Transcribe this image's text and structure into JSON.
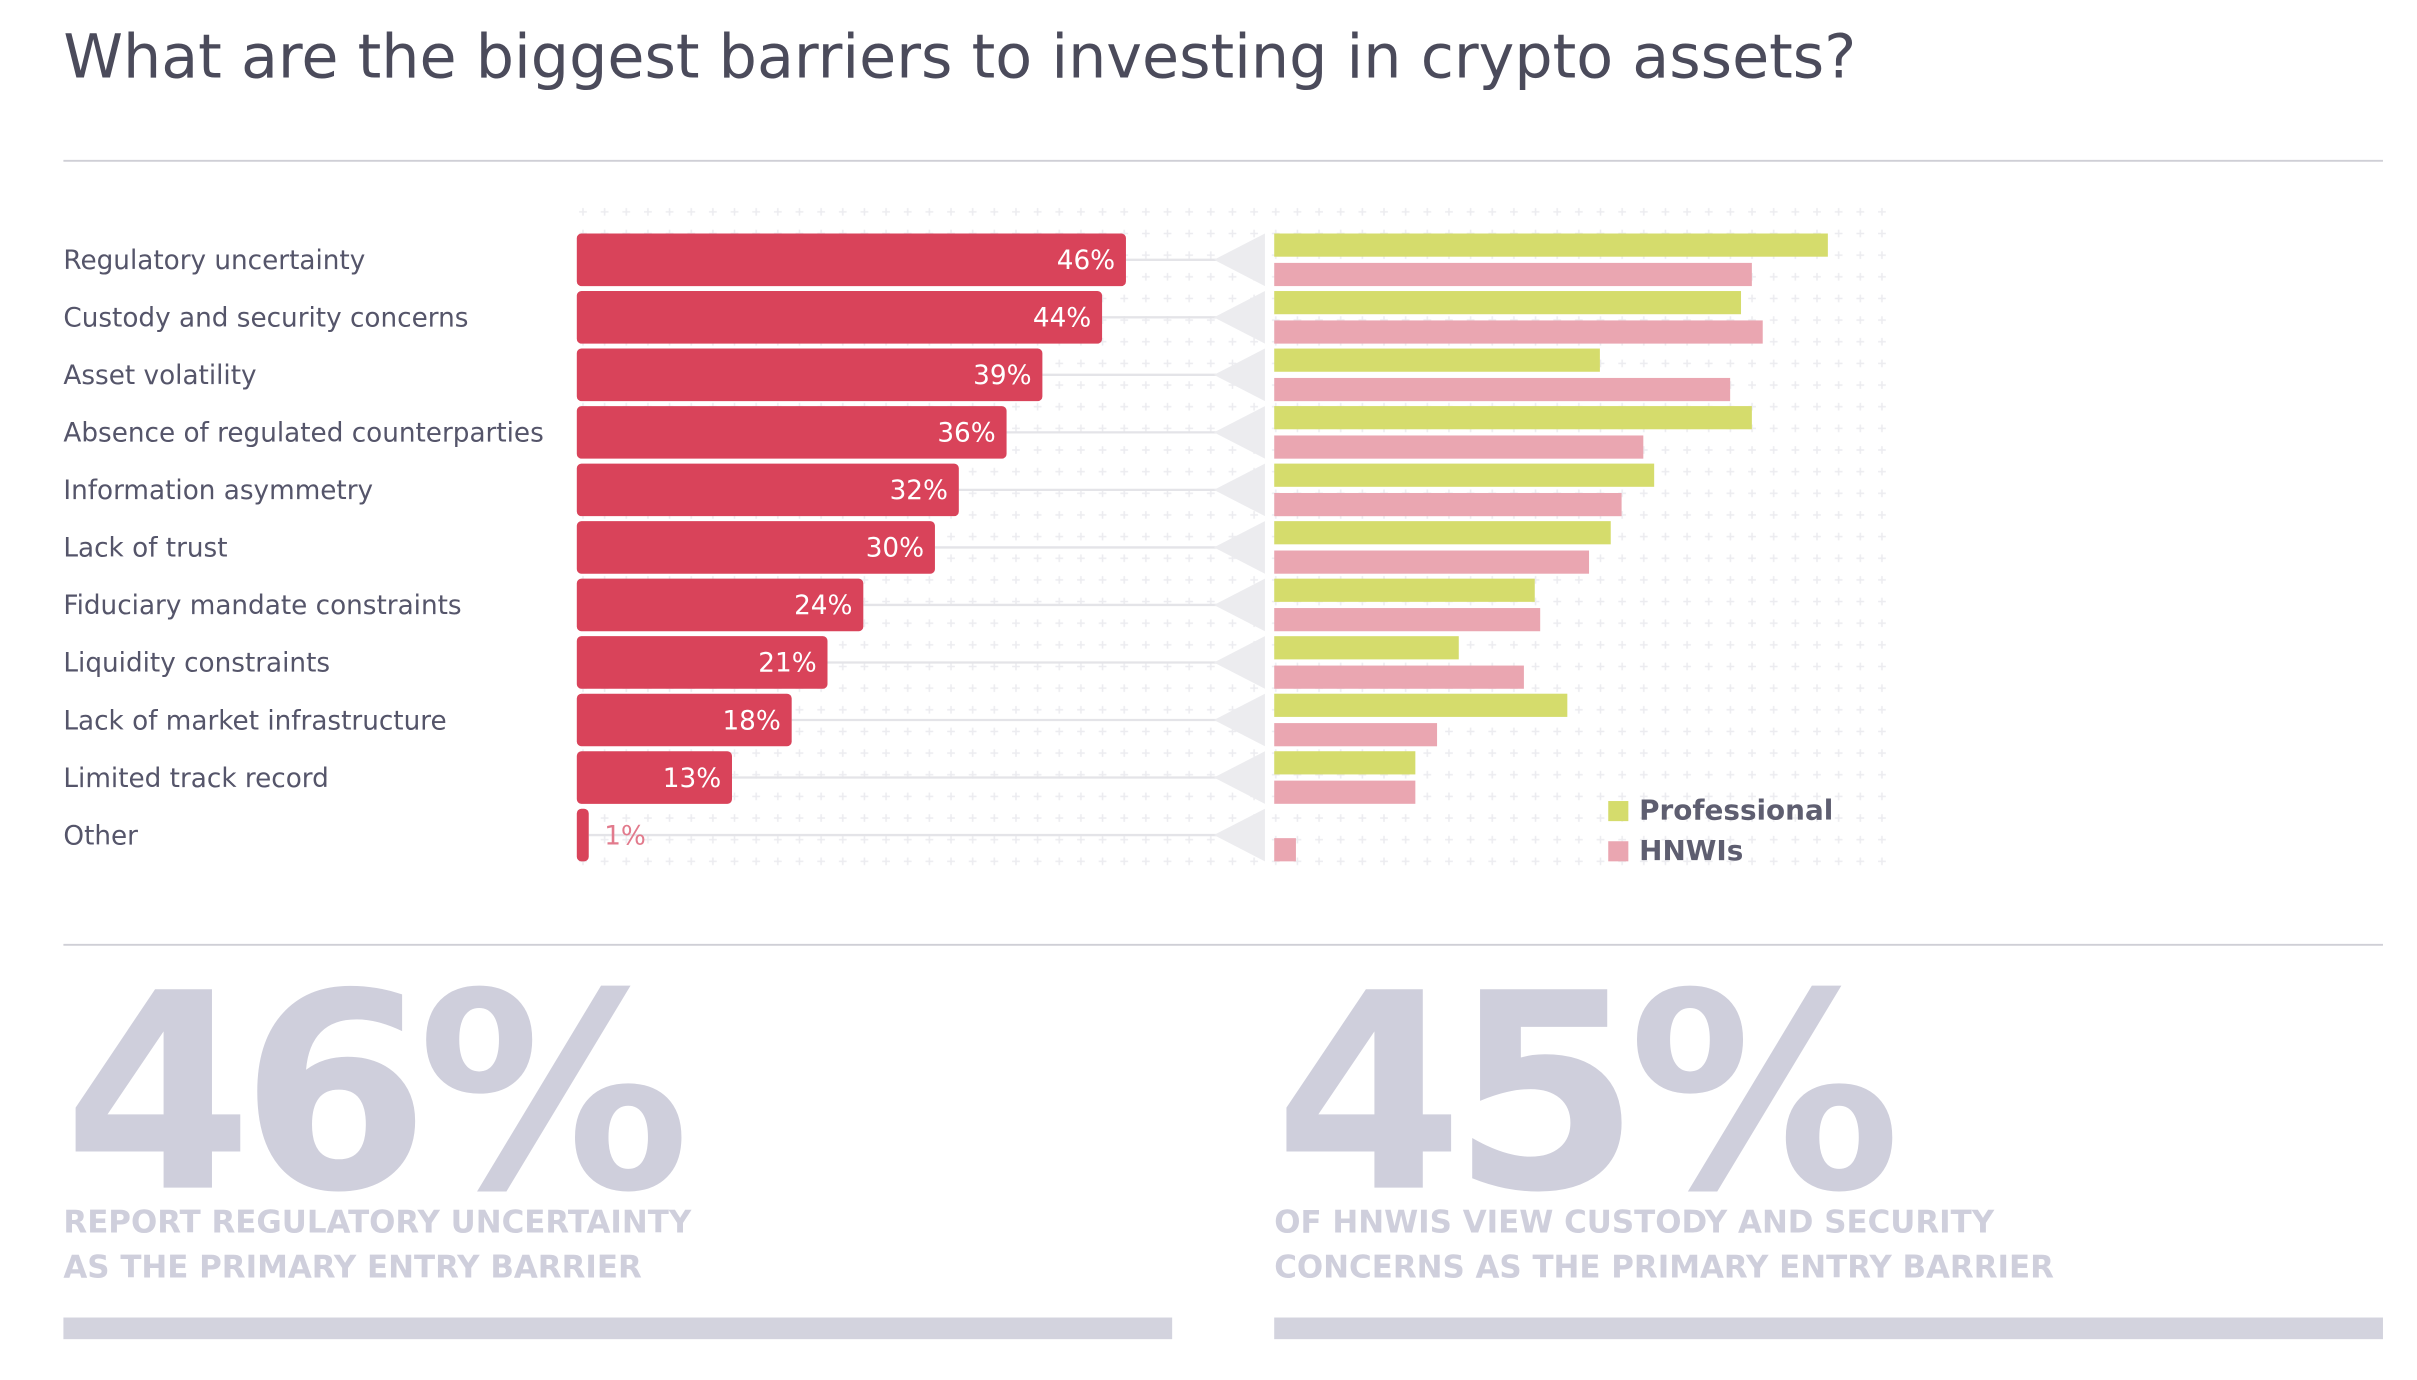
{
  "title": "What are the biggest barriers to investing in crypto assets?",
  "chart_data": [
    {
      "type": "bar",
      "orientation": "horizontal",
      "categories": [
        "Regulatory uncertainty",
        "Custody and security concerns",
        "Asset volatility",
        "Absence of regulated counterparties",
        "Information asymmetry",
        "Lack of trust",
        "Fiduciary mandate constraints",
        "Liquidity constraints",
        "Lack of market infrastructure",
        "Limited track record",
        "Other"
      ],
      "values": [
        46,
        44,
        39,
        36,
        32,
        30,
        24,
        21,
        18,
        13,
        1
      ],
      "value_labels": [
        "46%",
        "44%",
        "39%",
        "36%",
        "32%",
        "30%",
        "24%",
        "21%",
        "18%",
        "13%",
        "1%"
      ],
      "color": "#d9435a"
    },
    {
      "type": "bar",
      "orientation": "horizontal",
      "series": [
        {
          "name": "Professional",
          "color": "#d5dc6c",
          "values": [
            51,
            43,
            30,
            44,
            35,
            31,
            24,
            17,
            27,
            13,
            0
          ]
        },
        {
          "name": "HNWIs",
          "color": "#eaa6b1",
          "values": [
            44,
            45,
            42,
            34,
            32,
            29,
            24.5,
            23,
            15,
            13,
            2
          ]
        }
      ],
      "legend": "lower right"
    }
  ],
  "highlights": [
    {
      "figure": "46%",
      "caption": [
        "REPORT REGULATORY UNCERTAINTY",
        "AS THE PRIMARY ENTRY BARRIER"
      ]
    },
    {
      "figure": "45%",
      "caption": [
        "OF HNWIS VIEW CUSTODY AND SECURITY",
        "CONCERNS AS THE PRIMARY ENTRY BARRIER"
      ]
    }
  ]
}
